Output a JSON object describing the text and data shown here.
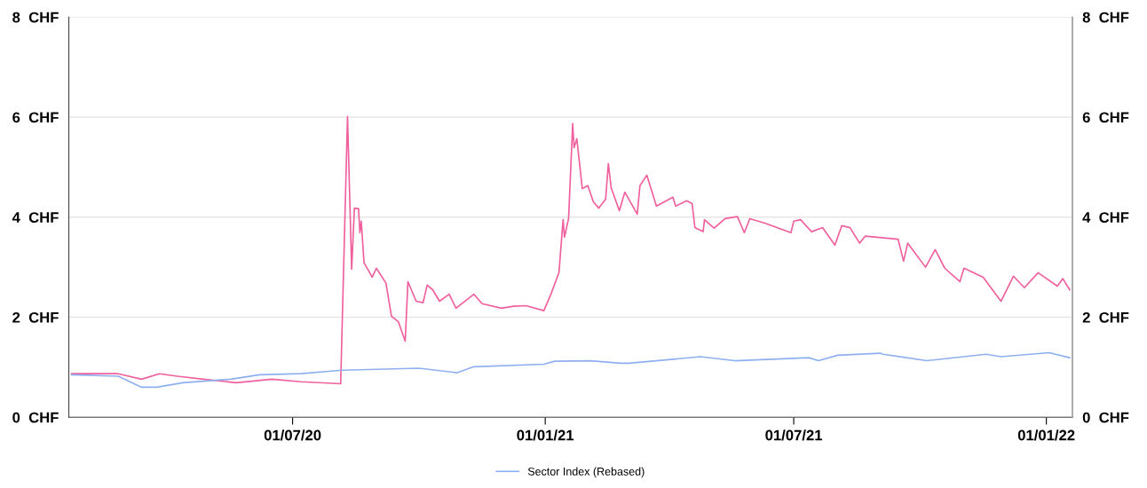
{
  "chart_data": {
    "type": "line",
    "xlim": [
      "2020-01-20",
      "2022-01-20"
    ],
    "xticks": [
      {
        "value": "2020-07-01",
        "label": "01/07/20"
      },
      {
        "value": "2021-01-01",
        "label": "01/01/21"
      },
      {
        "value": "2021-07-01",
        "label": "01/07/21"
      },
      {
        "value": "2022-01-01",
        "label": "01/01/22"
      }
    ],
    "ylim": [
      0,
      8
    ],
    "yticks": [
      {
        "value": 0,
        "label": "0  CHF"
      },
      {
        "value": 2,
        "label": "2  CHF"
      },
      {
        "value": 4,
        "label": "4  CHF"
      },
      {
        "value": 6,
        "label": "6  CHF"
      },
      {
        "value": 8,
        "label": "8  CHF"
      }
    ],
    "y2lim": [
      0,
      8
    ],
    "y2ticks": [
      {
        "value": 0,
        "label": "0  CHF"
      },
      {
        "value": 2,
        "label": "2  CHF"
      },
      {
        "value": 4,
        "label": "4  CHF"
      },
      {
        "value": 6,
        "label": "6  CHF"
      },
      {
        "value": 8,
        "label": "8  CHF"
      }
    ],
    "grid": "y",
    "legend": "bottom",
    "marker": "none",
    "line_style": "solid",
    "series": [
      {
        "color": "#f0609e",
        "x": [
          "2020-01-22",
          "2020-02-25",
          "2020-03-13",
          "2020-03-26",
          "2020-04-08",
          "2020-04-27",
          "2020-05-21",
          "2020-06-16",
          "2020-07-07",
          "2020-08-05",
          "2020-08-10",
          "2020-08-13",
          "2020-08-15",
          "2020-08-18",
          "2020-08-19",
          "2020-08-20",
          "2020-08-22",
          "2020-08-28",
          "2020-08-31",
          "2020-09-07",
          "2020-09-11",
          "2020-09-16",
          "2020-09-21",
          "2020-09-23",
          "2020-09-29",
          "2020-10-04",
          "2020-10-07",
          "2020-10-11",
          "2020-10-16",
          "2020-10-23",
          "2020-10-28",
          "2020-11-10",
          "2020-11-16",
          "2020-11-30",
          "2020-12-09",
          "2020-12-18",
          "2020-12-31",
          "2021-01-05",
          "2021-01-11",
          "2021-01-14",
          "2021-01-15",
          "2021-01-18",
          "2021-01-21",
          "2021-01-22",
          "2021-01-24",
          "2021-01-28",
          "2021-02-01",
          "2021-02-05",
          "2021-02-09",
          "2021-02-14",
          "2021-02-16",
          "2021-02-18",
          "2021-02-24",
          "2021-02-28",
          "2021-03-09",
          "2021-03-11",
          "2021-03-16",
          "2021-03-23",
          "2021-04-04",
          "2021-04-06",
          "2021-04-14",
          "2021-04-18",
          "2021-04-20",
          "2021-04-26",
          "2021-04-27",
          "2021-05-04",
          "2021-05-12",
          "2021-05-21",
          "2021-05-26",
          "2021-05-30",
          "2021-06-10",
          "2021-06-29",
          "2021-07-01",
          "2021-07-06",
          "2021-07-14",
          "2021-07-22",
          "2021-07-31",
          "2021-08-05",
          "2021-08-11",
          "2021-08-18",
          "2021-08-22",
          "2021-09-15",
          "2021-09-19",
          "2021-09-22",
          "2021-10-05",
          "2021-10-12",
          "2021-10-19",
          "2021-10-30",
          "2021-11-02",
          "2021-11-16",
          "2021-11-29",
          "2021-12-08",
          "2021-12-16",
          "2021-12-26",
          "2022-01-09",
          "2022-01-13",
          "2022-01-18"
        ],
        "values": [
          0.87,
          0.87,
          0.76,
          0.87,
          0.82,
          0.76,
          0.69,
          0.76,
          0.71,
          0.67,
          6.01,
          2.96,
          4.18,
          4.17,
          3.69,
          3.92,
          3.09,
          2.8,
          2.98,
          2.68,
          2.02,
          1.91,
          1.52,
          2.71,
          2.32,
          2.29,
          2.64,
          2.55,
          2.32,
          2.46,
          2.18,
          2.46,
          2.27,
          2.18,
          2.22,
          2.23,
          2.13,
          2.45,
          2.89,
          3.95,
          3.6,
          3.97,
          5.87,
          5.39,
          5.57,
          4.57,
          4.63,
          4.31,
          4.18,
          4.36,
          5.07,
          4.59,
          4.13,
          4.5,
          4.06,
          4.63,
          4.84,
          4.22,
          4.4,
          4.22,
          4.33,
          4.27,
          3.79,
          3.71,
          3.95,
          3.78,
          3.97,
          4.01,
          3.69,
          3.97,
          3.88,
          3.69,
          3.92,
          3.95,
          3.71,
          3.79,
          3.44,
          3.83,
          3.79,
          3.48,
          3.62,
          3.56,
          3.12,
          3.48,
          3.0,
          3.35,
          2.98,
          2.71,
          2.98,
          2.8,
          2.32,
          2.82,
          2.59,
          2.89,
          2.62,
          2.77,
          2.55
        ]
      },
      {
        "name": "Sector Index (Rebased)",
        "color": "#8fb0f0",
        "x": [
          "2020-01-22",
          "2020-02-25",
          "2020-03-13",
          "2020-03-24",
          "2020-04-12",
          "2020-05-17",
          "2020-06-07",
          "2020-07-07",
          "2020-08-06",
          "2020-10-01",
          "2020-10-29",
          "2020-11-10",
          "2020-12-31",
          "2021-01-08",
          "2021-02-03",
          "2021-02-25",
          "2021-03-03",
          "2021-04-24",
          "2021-05-19",
          "2021-07-12",
          "2021-07-19",
          "2021-08-02",
          "2021-09-02",
          "2021-09-04",
          "2021-10-06",
          "2021-11-18",
          "2021-11-29",
          "2022-01-03",
          "2022-01-18"
        ],
        "values": [
          0.85,
          0.82,
          0.6,
          0.6,
          0.69,
          0.76,
          0.85,
          0.87,
          0.94,
          0.98,
          0.89,
          1.01,
          1.06,
          1.12,
          1.13,
          1.08,
          1.08,
          1.21,
          1.13,
          1.19,
          1.13,
          1.24,
          1.28,
          1.26,
          1.13,
          1.26,
          1.21,
          1.29,
          1.19
        ]
      }
    ]
  }
}
